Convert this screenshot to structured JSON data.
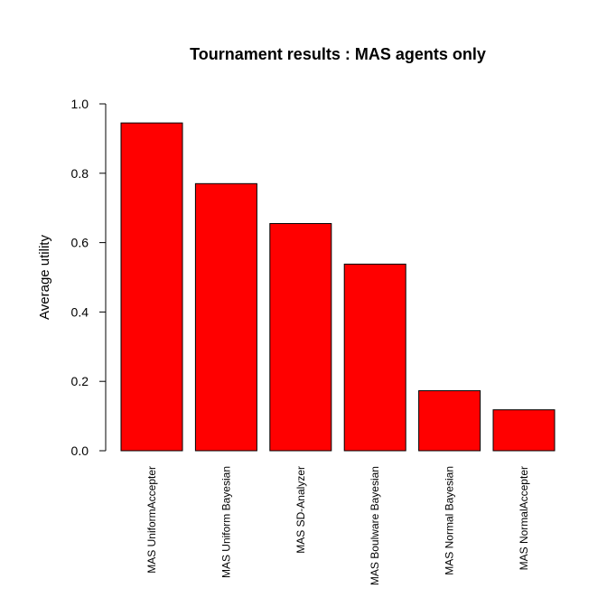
{
  "chart_data": {
    "type": "bar",
    "title": "Tournament results : MAS agents only",
    "xlabel": "",
    "ylabel": "Average utility",
    "ylim": [
      0,
      1.0
    ],
    "yticks": [
      "0.0",
      "0.2",
      "0.4",
      "0.6",
      "0.8",
      "1.0"
    ],
    "categories": [
      "MAS UniformAccepter",
      "MAS Uniform Bayesian",
      "MAS SD-Analyzer",
      "MAS Boulware Bayesian",
      "MAS Normal Bayesian",
      "MAS NormalAccepter"
    ],
    "values": [
      0.945,
      0.77,
      0.655,
      0.538,
      0.173,
      0.118
    ],
    "bar_color": "#ff0000",
    "bar_border_color": "#000000",
    "grid": false,
    "legend": "none"
  }
}
